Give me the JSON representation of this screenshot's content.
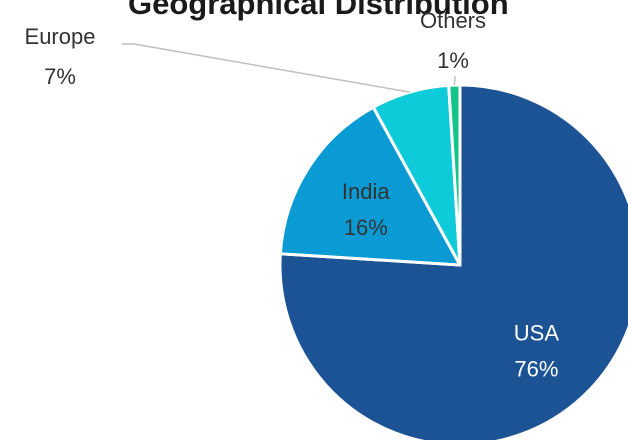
{
  "chart_data": {
    "type": "pie",
    "title": "Geographical Distribution",
    "slices": [
      {
        "label": "USA",
        "value": 76,
        "value_label": "76%",
        "color": "#1c5394"
      },
      {
        "label": "India",
        "value": 16,
        "value_label": "16%",
        "color": "#0a9bd4"
      },
      {
        "label": "Europe",
        "value": 7,
        "value_label": "7%",
        "color": "#0dcbd8"
      },
      {
        "label": "Others",
        "value": 1,
        "value_label": "1%",
        "color": "#14c48a"
      }
    ],
    "start_angle_deg": 0,
    "direction": "clockwise",
    "legend": "none",
    "label_color_inside": "#ffffff",
    "label_color_outside": "#333333",
    "leader_line_color": "#bfbfbf"
  }
}
